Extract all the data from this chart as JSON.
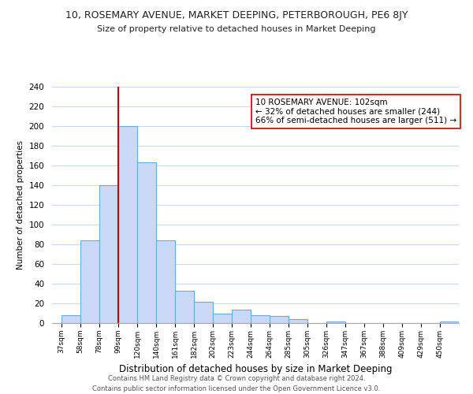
{
  "title": "10, ROSEMARY AVENUE, MARKET DEEPING, PETERBOROUGH, PE6 8JY",
  "subtitle": "Size of property relative to detached houses in Market Deeping",
  "xlabel": "Distribution of detached houses by size in Market Deeping",
  "ylabel": "Number of detached properties",
  "bar_labels": [
    "37sqm",
    "58sqm",
    "78sqm",
    "99sqm",
    "120sqm",
    "140sqm",
    "161sqm",
    "182sqm",
    "202sqm",
    "223sqm",
    "244sqm",
    "264sqm",
    "285sqm",
    "305sqm",
    "326sqm",
    "347sqm",
    "367sqm",
    "388sqm",
    "409sqm",
    "429sqm",
    "450sqm"
  ],
  "bar_values": [
    8,
    84,
    140,
    200,
    163,
    84,
    33,
    22,
    10,
    14,
    8,
    7,
    4,
    0,
    2,
    0,
    0,
    0,
    0,
    0,
    2
  ],
  "bar_color": "#c9daf8",
  "bar_edge_color": "#6fa8dc",
  "ylim": [
    0,
    240
  ],
  "yticks": [
    0,
    20,
    40,
    60,
    80,
    100,
    120,
    140,
    160,
    180,
    200,
    220,
    240
  ],
  "property_line_color": "#cc0000",
  "annotation_text": "10 ROSEMARY AVENUE: 102sqm\n← 32% of detached houses are smaller (244)\n66% of semi-detached houses are larger (511) →",
  "annotation_box_edge": "#cc0000",
  "footer_line1": "Contains HM Land Registry data © Crown copyright and database right 2024.",
  "footer_line2": "Contains public sector information licensed under the Open Government Licence v3.0.",
  "background_color": "#ffffff",
  "grid_color": "#c9daf8"
}
